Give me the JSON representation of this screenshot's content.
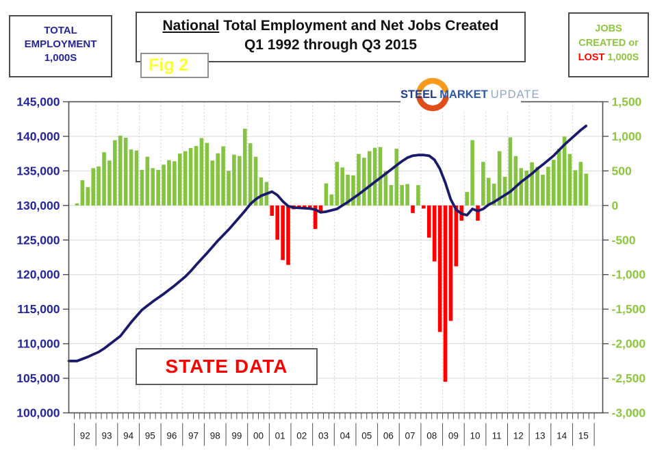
{
  "header": {
    "left_box": {
      "lines": [
        "TOTAL",
        "EMPLOYMENT",
        "1,000S"
      ]
    },
    "title_box": {
      "underlined": "National",
      "rest": "Total Employment and Net Jobs Created",
      "line2": "Q1 1992 through Q3 2015"
    },
    "fig_label": "Fig 2",
    "right_box": {
      "line1": "JOBS",
      "line2": "CREATED or",
      "lost": "LOST",
      "unit": "1,000S"
    }
  },
  "logo": {
    "steel": "STEEL",
    "market": "MARKET",
    "update": "UPDATE"
  },
  "annotation": {
    "text": "STATE DATA"
  },
  "chart_data": {
    "type": "combo-bar-line",
    "title": "National Total Employment and Net Jobs Created Q1 1992 through Q3 2015",
    "left_axis": {
      "label": "TOTAL EMPLOYMENT 1,000S",
      "min": 100000,
      "max": 145000,
      "step": 5000,
      "tick_labels": [
        "145,000",
        "140,000",
        "135,000",
        "130,000",
        "125,000",
        "120,000",
        "115,000",
        "110,000",
        "105,000",
        "100,000"
      ]
    },
    "right_axis": {
      "label": "JOBS CREATED or LOST 1,000S",
      "min": -3000,
      "max": 1500,
      "step": 500,
      "tick_labels": [
        "1,500",
        "1,000",
        "500",
        "0",
        "-500",
        "-1,000",
        "-1,500",
        "-2,000",
        "-2,500",
        "-3,000"
      ]
    },
    "x_years": [
      "92",
      "93",
      "94",
      "95",
      "96",
      "97",
      "98",
      "99",
      "00",
      "01",
      "02",
      "03",
      "04",
      "05",
      "06",
      "07",
      "08",
      "09",
      "10",
      "11",
      "12",
      "13",
      "14",
      "15"
    ],
    "grid": "on",
    "bars": {
      "name": "Net Jobs Created or Lost (1,000s, quarterly)",
      "values": [
        30,
        365,
        265,
        540,
        565,
        770,
        650,
        945,
        1010,
        980,
        810,
        795,
        515,
        705,
        540,
        515,
        590,
        655,
        640,
        750,
        785,
        830,
        860,
        975,
        905,
        650,
        755,
        855,
        500,
        735,
        715,
        1110,
        900,
        705,
        405,
        340,
        -150,
        -495,
        -790,
        -860,
        -55,
        -50,
        -50,
        -55,
        -340,
        -90,
        320,
        160,
        630,
        550,
        445,
        435,
        745,
        690,
        785,
        835,
        845,
        495,
        295,
        820,
        295,
        310,
        -110,
        295,
        -45,
        -465,
        -810,
        -1830,
        -2550,
        -1670,
        -880,
        -220,
        195,
        945,
        -220,
        630,
        400,
        315,
        785,
        415,
        985,
        715,
        540,
        505,
        625,
        560,
        445,
        560,
        660,
        820,
        995,
        745,
        510,
        630,
        460
      ]
    },
    "line": {
      "name": "Total Employment (1,000s, quarterly)",
      "values": [
        107500,
        107800,
        108100,
        108450,
        108800,
        109300,
        109900,
        110500,
        111100,
        112100,
        113100,
        114000,
        114900,
        115500,
        116100,
        116650,
        117200,
        117800,
        118400,
        119050,
        119700,
        120500,
        121400,
        122250,
        123100,
        124000,
        124900,
        125700,
        126500,
        127400,
        128300,
        129200,
        130200,
        130900,
        131400,
        131700,
        132000,
        131500,
        130600,
        129900,
        129700,
        129650,
        129600,
        129550,
        129400,
        129000,
        129100,
        129300,
        129500,
        130000,
        130500,
        131050,
        131600,
        132200,
        132800,
        133400,
        134000,
        134600,
        135200,
        135800,
        136400,
        136900,
        137200,
        137300,
        137300,
        137200,
        136600,
        135300,
        133300,
        130900,
        129400,
        128800,
        128600,
        129500,
        129200,
        129500,
        130100,
        130500,
        131000,
        131500,
        132000,
        132700,
        133400,
        134000,
        134600,
        135300,
        135900,
        136550,
        137200,
        138000,
        138800,
        139500,
        140200,
        140900,
        141500
      ]
    },
    "colors": {
      "bar_positive": "#85C441",
      "bar_negative": "#FF0000",
      "line": "#1A1A6B",
      "left_axis_text": "#24249C",
      "right_axis_text": "#8DC63F",
      "year_text": "#1A1A1A",
      "grid": "#D9D9D9",
      "grid_dash": "#CCCCCC",
      "frame": "#4D4D4D"
    }
  }
}
